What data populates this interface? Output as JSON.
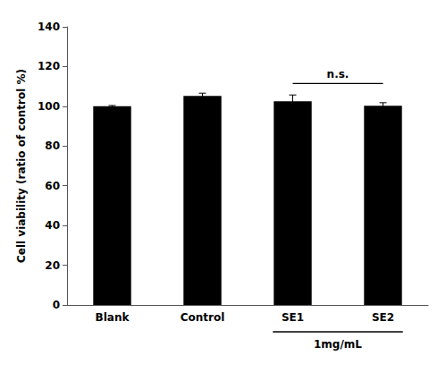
{
  "chart_data": {
    "type": "bar",
    "categories": [
      "Blank",
      "Control",
      "SE1",
      "SE2"
    ],
    "values": [
      100.0,
      105.2,
      102.5,
      100.3
    ],
    "errors": [
      0.4,
      1.4,
      3.2,
      1.5
    ],
    "color": "#000000",
    "ylabel": "Cell viability (ratio of control %)",
    "ylim": [
      0,
      140
    ],
    "yticks": [
      0,
      20,
      40,
      60,
      80,
      100,
      120,
      140
    ],
    "grid": false,
    "annotations": [
      {
        "text": "n.s.",
        "x": [
          "SE1",
          "SE2"
        ],
        "y": 113.5,
        "line_y": 111.5
      },
      {
        "text": "1mg/mL",
        "x": [
          "SE1",
          "SE2"
        ]
      }
    ]
  }
}
